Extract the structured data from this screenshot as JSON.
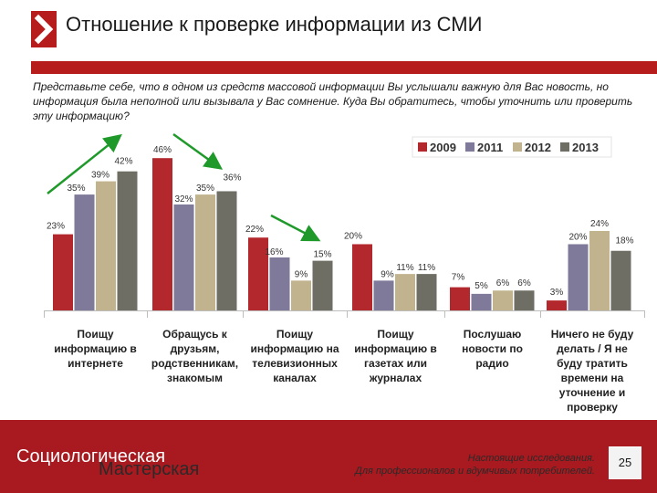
{
  "header": {
    "title": "Отношение к проверке информации из СМИ"
  },
  "question": "Представьте себе, что в одном из средств массовой информации Вы услышали важную для Вас новость, но информация была неполной или вызывала у Вас сомнение. Куда Вы обратитесь, чтобы уточнить или проверить эту информацию?",
  "colors": {
    "brand": "#b71c1c",
    "s2009": "#b3282d",
    "s2011": "#7f7a9a",
    "s2012": "#c1b38e",
    "s2013": "#6f6e64",
    "arrow": "#1f9a2a"
  },
  "footer": {
    "brand_line1": "Социологическая",
    "brand_line2": "Мастерская",
    "slogan_line1": "Настоящие исследования.",
    "slogan_line2": "Для профессионалов и вдумчивых потребителей.",
    "page_number": "25"
  },
  "chart_data": {
    "type": "bar",
    "legend_position": "top-right",
    "grid": false,
    "ylim": [
      0,
      50
    ],
    "categories": [
      [
        "Поищу",
        "информацию в",
        "интернете"
      ],
      [
        "Обращусь к",
        "друзьям,",
        "родственникам,",
        "знакомым"
      ],
      [
        "Поищу",
        "информацию на",
        "телевизионных",
        "каналах"
      ],
      [
        "Поищу",
        "информацию в",
        "газетах или",
        "журналах"
      ],
      [
        "Послушаю",
        "новости по",
        "радио"
      ],
      [
        "Ничего не буду",
        "делать / Я не",
        "буду тратить",
        "времени на",
        "уточнение и",
        "проверку"
      ]
    ],
    "series": [
      {
        "name": "2009",
        "color": "#b3282d",
        "values": [
          23,
          46,
          22,
          20,
          7,
          3
        ]
      },
      {
        "name": "2011",
        "color": "#7f7a9a",
        "values": [
          35,
          32,
          16,
          9,
          5,
          20
        ]
      },
      {
        "name": "2012",
        "color": "#c1b38e",
        "values": [
          39,
          35,
          9,
          11,
          6,
          24
        ]
      },
      {
        "name": "2013",
        "color": "#6f6e64",
        "values": [
          42,
          36,
          15,
          11,
          6,
          18
        ]
      }
    ],
    "data_labels": [
      [
        "23%",
        "35%",
        "39%",
        "42%"
      ],
      [
        "46%",
        "32%",
        "35%",
        "36%"
      ],
      [
        "22%",
        "16%",
        "9%",
        "15%"
      ],
      [
        "20%",
        "9%",
        "11%",
        "11%"
      ],
      [
        "7%",
        "5%",
        "6%",
        "6%"
      ],
      [
        "3%",
        "20%",
        "24%",
        "18%"
      ]
    ]
  }
}
